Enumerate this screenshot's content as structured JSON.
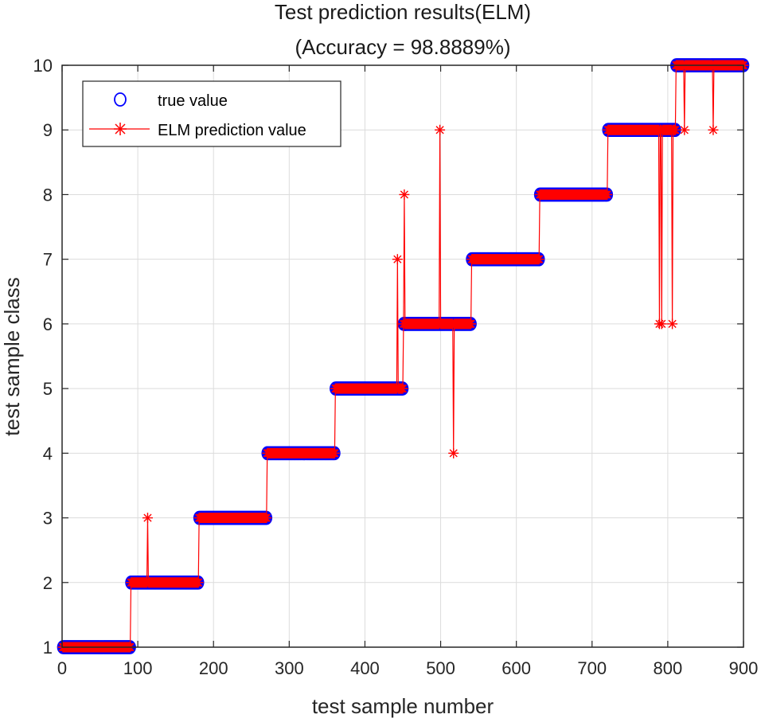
{
  "chart_data": {
    "type": "line",
    "title": "Test prediction results(ELM)",
    "subtitle": "(Accuracy = 98.8889%)",
    "xlabel": "test sample number",
    "ylabel": "test sample class",
    "xlim": [
      0,
      900
    ],
    "ylim": [
      1,
      10
    ],
    "xticks": [
      "0",
      "100",
      "200",
      "300",
      "400",
      "500",
      "600",
      "700",
      "800",
      "900"
    ],
    "yticks": [
      "1",
      "2",
      "3",
      "4",
      "5",
      "6",
      "7",
      "8",
      "9",
      "10"
    ],
    "grid": true,
    "legend_position": "top-left",
    "series": [
      {
        "name": "true value",
        "marker": "circle",
        "color": "#0000ff",
        "class_ranges": [
          {
            "class": 1,
            "start": 1,
            "end": 90
          },
          {
            "class": 2,
            "start": 91,
            "end": 180
          },
          {
            "class": 3,
            "start": 181,
            "end": 270
          },
          {
            "class": 4,
            "start": 271,
            "end": 360
          },
          {
            "class": 5,
            "start": 361,
            "end": 450
          },
          {
            "class": 6,
            "start": 451,
            "end": 540
          },
          {
            "class": 7,
            "start": 541,
            "end": 630
          },
          {
            "class": 8,
            "start": 631,
            "end": 720
          },
          {
            "class": 9,
            "start": 721,
            "end": 810
          },
          {
            "class": 10,
            "start": 811,
            "end": 900
          }
        ]
      },
      {
        "name": "ELM prediction value",
        "marker": "star",
        "color": "#ff0000",
        "misclassified": [
          {
            "x": 113,
            "y": 3
          },
          {
            "x": 443,
            "y": 7
          },
          {
            "x": 452,
            "y": 8
          },
          {
            "x": 499,
            "y": 9
          },
          {
            "x": 517,
            "y": 4
          },
          {
            "x": 789,
            "y": 6
          },
          {
            "x": 792,
            "y": 6
          },
          {
            "x": 806,
            "y": 6
          },
          {
            "x": 822,
            "y": 9
          },
          {
            "x": 860,
            "y": 9
          }
        ]
      }
    ]
  },
  "colors": {
    "true_value": "#0000ff",
    "prediction": "#ff0000",
    "grid": "#dcdcdc",
    "axis": "#262626"
  }
}
